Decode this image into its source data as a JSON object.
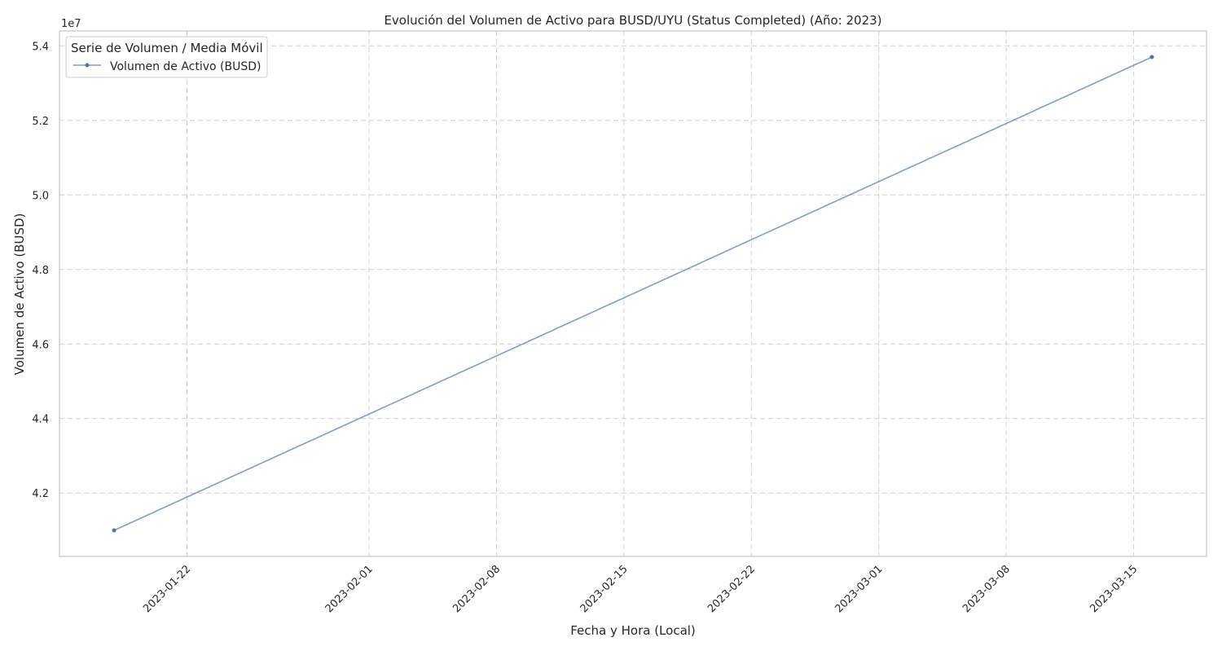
{
  "chart_data": {
    "type": "line",
    "title": "Evolución del Volumen de Activo para BUSD/UYU (Status Completed) (Año: 2023)",
    "xlabel": "Fecha y Hora (Local)",
    "ylabel": "Volumen de Activo (BUSD)",
    "y_offset_label": "1e7",
    "x_is_date": true,
    "xlim": [
      "2023-01-15",
      "2023-03-19"
    ],
    "ylim": [
      40.3,
      54.4
    ],
    "y_ticks": [
      4.2,
      4.4,
      4.6,
      4.8,
      5.0,
      5.2,
      5.4
    ],
    "y_tick_labels": [
      "4.2",
      "4.4",
      "4.6",
      "4.8",
      "5.0",
      "5.2",
      "5.4"
    ],
    "x_ticks": [
      "2023-01-22",
      "2023-02-01",
      "2023-02-08",
      "2023-02-15",
      "2023-02-22",
      "2023-03-01",
      "2023-03-08",
      "2023-03-15"
    ],
    "x_tick_labels": [
      "2023-01-22",
      "2023-02-01",
      "2023-02-08",
      "2023-02-15",
      "2023-02-22",
      "2023-03-01",
      "2023-03-08",
      "2023-03-15"
    ],
    "grid": true,
    "legend": {
      "title": "Serie de Volumen / Media Móvil",
      "position": "top-left"
    },
    "series": [
      {
        "name": "Volumen de Activo (BUSD)",
        "color": "#4c72b0",
        "x": [
          "2023-01-18",
          "2023-03-16"
        ],
        "y": [
          41.0,
          53.7
        ]
      }
    ]
  }
}
